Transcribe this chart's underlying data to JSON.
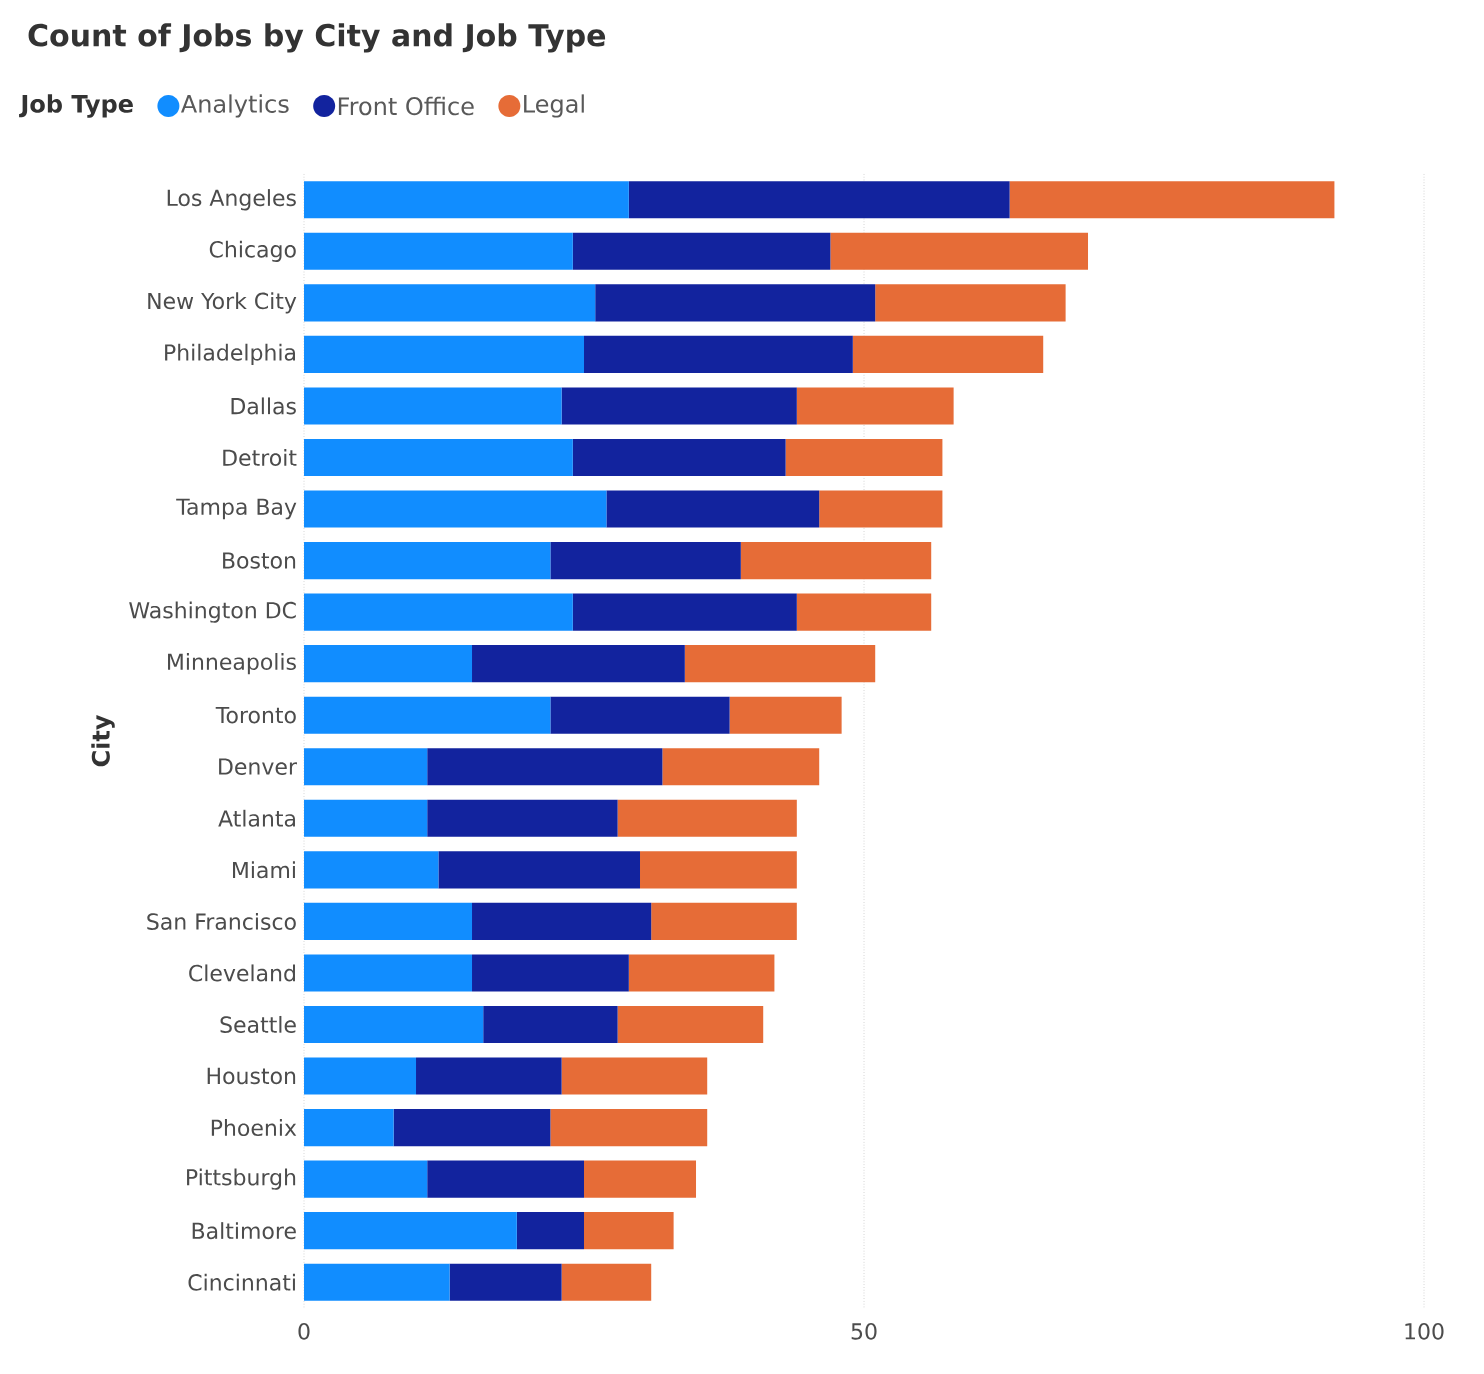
{
  "chart_data": {
    "type": "bar",
    "orientation": "horizontal",
    "stacked": true,
    "title": "Count of Jobs by City and Job Type",
    "legend_title": "Job Type",
    "ylabel": "City",
    "categories": [
      "Los Angeles",
      "Chicago",
      "New York City",
      "Philadelphia",
      "Dallas",
      "Detroit",
      "Tampa Bay",
      "Boston",
      "Washington DC",
      "Minneapolis",
      "Toronto",
      "Denver",
      "Atlanta",
      "Miami",
      "San Francisco",
      "Cleveland",
      "Seattle",
      "Houston",
      "Phoenix",
      "Pittsburgh",
      "Baltimore",
      "Cincinnati"
    ],
    "series": [
      {
        "name": "Analytics",
        "color": "#118dff",
        "values": [
          29,
          24,
          26,
          25,
          23,
          24,
          27,
          22,
          24,
          15,
          22,
          11,
          11,
          12,
          15,
          15,
          16,
          10,
          8,
          11,
          19,
          13
        ]
      },
      {
        "name": "Front Office",
        "color": "#12239e",
        "values": [
          34,
          23,
          25,
          24,
          21,
          19,
          19,
          17,
          20,
          19,
          16,
          21,
          17,
          18,
          16,
          14,
          12,
          13,
          14,
          14,
          6,
          10
        ]
      },
      {
        "name": "Legal",
        "color": "#e66c37",
        "values": [
          29,
          23,
          17,
          17,
          14,
          14,
          11,
          17,
          12,
          17,
          10,
          14,
          16,
          14,
          13,
          13,
          13,
          13,
          14,
          10,
          8,
          8
        ]
      }
    ],
    "xlim": [
      0,
      100
    ],
    "xticks": [
      0,
      50,
      100
    ],
    "grid": "x",
    "legend": "top left"
  }
}
